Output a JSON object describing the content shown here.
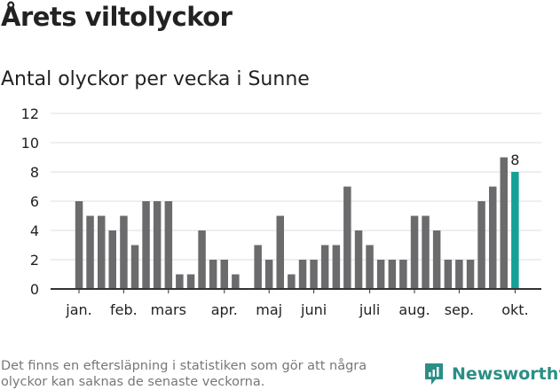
{
  "title": "Årets viltolyckor",
  "subtitle": "Antal olyckor per vecka i Sunne",
  "footnote": "Det finns en eftersläpning i statistiken som gör att några olyckor kan saknas de senaste veckorna.",
  "brand": "Newsworthy",
  "colors": {
    "bar": "#6b6b6d",
    "highlight": "#14a196",
    "grid": "#dddddd",
    "axis": "#333333",
    "brand": "#2a8f86"
  },
  "chart_data": {
    "type": "bar",
    "title": "Antal olyckor per vecka i Sunne",
    "xlabel": "",
    "ylabel": "",
    "ylim": [
      0,
      12
    ],
    "yticks": [
      0,
      2,
      4,
      6,
      8,
      10,
      12
    ],
    "grid": true,
    "x": [
      1,
      2,
      3,
      4,
      5,
      6,
      7,
      8,
      9,
      10,
      11,
      12,
      13,
      14,
      15,
      16,
      17,
      18,
      19,
      20,
      21,
      22,
      23,
      24,
      25,
      26,
      27,
      28,
      29,
      30,
      31,
      32,
      33,
      34,
      35,
      36,
      37,
      38,
      39,
      40
    ],
    "values": [
      6,
      5,
      5,
      4,
      5,
      3,
      6,
      6,
      6,
      1,
      1,
      4,
      2,
      2,
      1,
      0,
      3,
      2,
      5,
      1,
      2,
      2,
      3,
      3,
      7,
      4,
      3,
      2,
      2,
      2,
      5,
      5,
      4,
      2,
      2,
      2,
      6,
      7,
      9,
      8
    ],
    "highlight_index": 39,
    "annotation": {
      "index": 39,
      "text": "8"
    },
    "month_labels": [
      {
        "label": "jan.",
        "x": 1
      },
      {
        "label": "feb.",
        "x": 5
      },
      {
        "label": "mars",
        "x": 9
      },
      {
        "label": "apr.",
        "x": 14
      },
      {
        "label": "maj",
        "x": 18
      },
      {
        "label": "juni",
        "x": 22
      },
      {
        "label": "juli",
        "x": 27
      },
      {
        "label": "aug.",
        "x": 31
      },
      {
        "label": "sep.",
        "x": 35
      },
      {
        "label": "okt.",
        "x": 40
      }
    ]
  }
}
